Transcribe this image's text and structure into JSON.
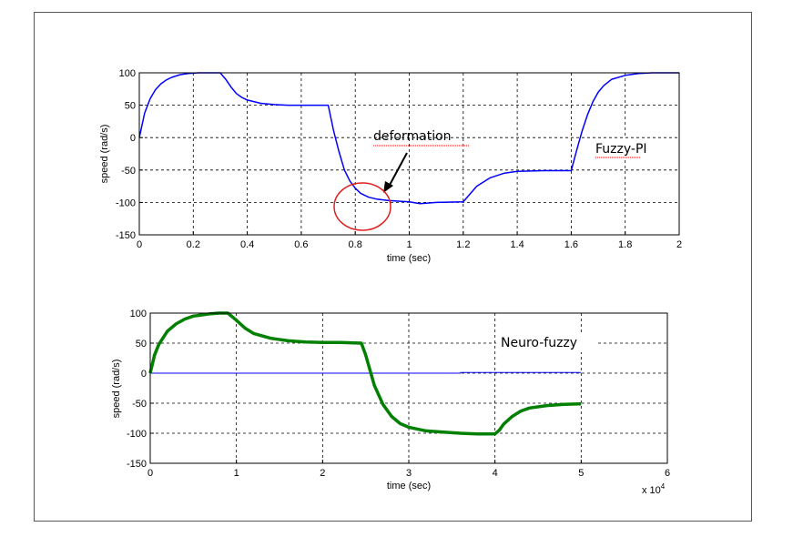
{
  "chart_data": [
    {
      "type": "line",
      "xlabel": "time (sec)",
      "ylabel": "speed (rad/s)",
      "xlim": [
        0,
        2
      ],
      "ylim": [
        -150,
        100
      ],
      "xticks": [
        "0",
        "0.2",
        "0.4",
        "0.6",
        "0.8",
        "1",
        "1.2",
        "1.4",
        "1.6",
        "1.8",
        "2"
      ],
      "yticks": [
        "100",
        "50",
        "0",
        "-50",
        "-100",
        "-150"
      ],
      "grid": true,
      "series": [
        {
          "color": "#0000ff",
          "x": [
            0,
            0.02,
            0.04,
            0.06,
            0.08,
            0.1,
            0.12,
            0.15,
            0.18,
            0.22,
            0.26,
            0.3,
            0.32,
            0.34,
            0.36,
            0.38,
            0.4,
            0.45,
            0.5,
            0.55,
            0.6,
            0.7,
            0.72,
            0.74,
            0.76,
            0.78,
            0.8,
            0.82,
            0.85,
            0.88,
            0.92,
            0.96,
            1.0,
            1.04,
            1.1,
            1.2,
            1.25,
            1.3,
            1.35,
            1.4,
            1.5,
            1.6,
            1.62,
            1.64,
            1.66,
            1.68,
            1.7,
            1.72,
            1.75,
            1.8,
            1.85,
            1.9,
            2.0
          ],
          "values": [
            0,
            38,
            60,
            74,
            83,
            89,
            93,
            97,
            99,
            100,
            100,
            100,
            90,
            78,
            68,
            62,
            58,
            53,
            51,
            50,
            50,
            50,
            10,
            -22,
            -50,
            -67,
            -78,
            -86,
            -92,
            -95,
            -97,
            -98,
            -99,
            -102,
            -100,
            -99,
            -75,
            -62,
            -55,
            -52,
            -51,
            -51,
            -20,
            10,
            35,
            55,
            70,
            80,
            90,
            96,
            99,
            100,
            100
          ],
          "annotations_on_chart": {
            "label": "Fuzzy-PI"
          }
        }
      ],
      "annotations": [
        {
          "text": "deformation"
        },
        {
          "text": "Fuzzy-PI"
        }
      ]
    },
    {
      "type": "line",
      "xlabel": "time (sec)",
      "ylabel": "speed (rad/s)",
      "xlim": [
        0,
        6
      ],
      "ylim": [
        -150,
        100
      ],
      "x_multiplier": "x 10",
      "x_multiplier_exp": "4",
      "xticks": [
        "0",
        "1",
        "2",
        "3",
        "4",
        "5",
        "6"
      ],
      "yticks": [
        "100",
        "50",
        "0",
        "-50",
        "-100",
        "-150"
      ],
      "grid": true,
      "series": [
        {
          "color": "#0000ff",
          "x": [
            0,
            3.6,
            3.6,
            5.0
          ],
          "values": [
            0,
            0,
            1,
            1
          ]
        },
        {
          "color": "#008000",
          "x": [
            0,
            0.05,
            0.1,
            0.2,
            0.3,
            0.4,
            0.5,
            0.6,
            0.7,
            0.8,
            0.9,
            1.0,
            1.1,
            1.2,
            1.4,
            1.6,
            1.8,
            2.0,
            2.2,
            2.45,
            2.5,
            2.55,
            2.6,
            2.7,
            2.8,
            2.9,
            3.0,
            3.2,
            3.4,
            3.6,
            3.8,
            4.0,
            4.05,
            4.1,
            4.2,
            4.3,
            4.4,
            4.6,
            4.8,
            5.0
          ],
          "values": [
            0,
            30,
            48,
            70,
            82,
            90,
            95,
            97,
            99,
            100,
            100,
            88,
            75,
            66,
            58,
            54,
            52,
            51,
            51,
            50,
            30,
            5,
            -20,
            -52,
            -72,
            -84,
            -90,
            -96,
            -98,
            -100,
            -101,
            -101,
            -95,
            -85,
            -72,
            -63,
            -58,
            -54,
            -52,
            -51
          ]
        }
      ],
      "annotations": [
        {
          "text": "Neuro-fuzzy"
        }
      ]
    }
  ]
}
